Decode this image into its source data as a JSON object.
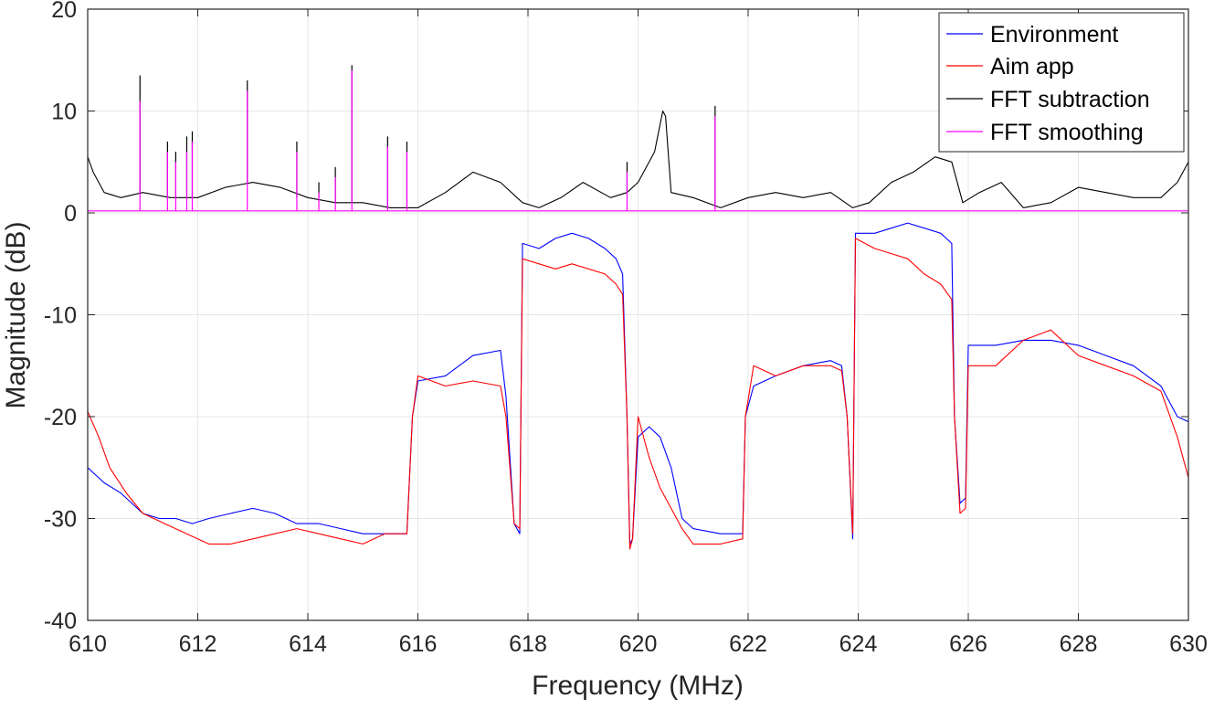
{
  "chart_data": {
    "type": "line",
    "title": "",
    "xlabel": "Frequency (MHz)",
    "ylabel": "Magnitude (dB)",
    "xlim": [
      610,
      630
    ],
    "ylim": [
      -40,
      20
    ],
    "grid": true,
    "legend_position": "top-right",
    "xticks": [
      610,
      612,
      614,
      616,
      618,
      620,
      622,
      624,
      626,
      628,
      630
    ],
    "yticks": [
      -40,
      -30,
      -20,
      -10,
      0,
      10,
      20
    ],
    "series": [
      {
        "name": "Environment",
        "color": "#0000ff",
        "points": [
          [
            610.0,
            -25
          ],
          [
            610.3,
            -26.5
          ],
          [
            610.6,
            -27.5
          ],
          [
            611.0,
            -29.5
          ],
          [
            611.3,
            -30
          ],
          [
            611.6,
            -30
          ],
          [
            611.9,
            -30.5
          ],
          [
            612.2,
            -30
          ],
          [
            612.6,
            -29.5
          ],
          [
            613.0,
            -29
          ],
          [
            613.4,
            -29.5
          ],
          [
            613.8,
            -30.5
          ],
          [
            614.2,
            -30.5
          ],
          [
            614.6,
            -31
          ],
          [
            615.0,
            -31.5
          ],
          [
            615.4,
            -31.5
          ],
          [
            615.8,
            -31.5
          ],
          [
            615.9,
            -20
          ],
          [
            616.0,
            -16.5
          ],
          [
            616.5,
            -16
          ],
          [
            617.0,
            -14
          ],
          [
            617.5,
            -13.5
          ],
          [
            617.6,
            -18
          ],
          [
            617.75,
            -30.5
          ],
          [
            617.85,
            -31.5
          ],
          [
            617.9,
            -3
          ],
          [
            618.2,
            -3.5
          ],
          [
            618.5,
            -2.5
          ],
          [
            618.8,
            -2
          ],
          [
            619.1,
            -2.5
          ],
          [
            619.4,
            -3.5
          ],
          [
            619.6,
            -4.5
          ],
          [
            619.72,
            -6
          ],
          [
            619.8,
            -20
          ],
          [
            619.85,
            -32.5
          ],
          [
            619.9,
            -32
          ],
          [
            620.0,
            -22
          ],
          [
            620.2,
            -21
          ],
          [
            620.4,
            -22
          ],
          [
            620.6,
            -25
          ],
          [
            620.8,
            -30
          ],
          [
            621.0,
            -31
          ],
          [
            621.5,
            -31.5
          ],
          [
            621.9,
            -31.5
          ],
          [
            621.95,
            -20
          ],
          [
            622.1,
            -17
          ],
          [
            622.5,
            -16
          ],
          [
            623.0,
            -15
          ],
          [
            623.5,
            -14.5
          ],
          [
            623.7,
            -15
          ],
          [
            623.8,
            -20
          ],
          [
            623.9,
            -32
          ],
          [
            623.95,
            -2
          ],
          [
            624.3,
            -2
          ],
          [
            624.6,
            -1.5
          ],
          [
            624.9,
            -1
          ],
          [
            625.2,
            -1.5
          ],
          [
            625.5,
            -2
          ],
          [
            625.7,
            -3
          ],
          [
            625.75,
            -20
          ],
          [
            625.85,
            -28.5
          ],
          [
            625.95,
            -28
          ],
          [
            626.0,
            -13
          ],
          [
            626.5,
            -13
          ],
          [
            627.0,
            -12.5
          ],
          [
            627.5,
            -12.5
          ],
          [
            628.0,
            -13
          ],
          [
            628.5,
            -14
          ],
          [
            629.0,
            -15
          ],
          [
            629.5,
            -17
          ],
          [
            629.8,
            -20
          ],
          [
            630.0,
            -20.5
          ]
        ]
      },
      {
        "name": "Aim app",
        "color": "#ff0000",
        "points": [
          [
            610.0,
            -19.5
          ],
          [
            610.2,
            -22
          ],
          [
            610.4,
            -25
          ],
          [
            610.7,
            -27.5
          ],
          [
            611.0,
            -29.5
          ],
          [
            611.4,
            -30.5
          ],
          [
            611.8,
            -31.5
          ],
          [
            612.2,
            -32.5
          ],
          [
            612.6,
            -32.5
          ],
          [
            613.0,
            -32
          ],
          [
            613.4,
            -31.5
          ],
          [
            613.8,
            -31
          ],
          [
            614.2,
            -31.5
          ],
          [
            614.6,
            -32
          ],
          [
            615.0,
            -32.5
          ],
          [
            615.4,
            -31.5
          ],
          [
            615.8,
            -31.5
          ],
          [
            615.9,
            -20
          ],
          [
            616.0,
            -16
          ],
          [
            616.5,
            -17
          ],
          [
            617.0,
            -16.5
          ],
          [
            617.5,
            -17
          ],
          [
            617.6,
            -20
          ],
          [
            617.75,
            -30.5
          ],
          [
            617.85,
            -31
          ],
          [
            617.9,
            -4.5
          ],
          [
            618.2,
            -5
          ],
          [
            618.5,
            -5.5
          ],
          [
            618.8,
            -5
          ],
          [
            619.1,
            -5.5
          ],
          [
            619.4,
            -6
          ],
          [
            619.6,
            -7
          ],
          [
            619.72,
            -8
          ],
          [
            619.8,
            -20
          ],
          [
            619.85,
            -33
          ],
          [
            619.9,
            -32
          ],
          [
            620.0,
            -20
          ],
          [
            620.2,
            -24
          ],
          [
            620.4,
            -27
          ],
          [
            620.6,
            -29
          ],
          [
            620.8,
            -31
          ],
          [
            621.0,
            -32.5
          ],
          [
            621.5,
            -32.5
          ],
          [
            621.9,
            -32
          ],
          [
            621.95,
            -20
          ],
          [
            622.1,
            -15
          ],
          [
            622.5,
            -16
          ],
          [
            623.0,
            -15
          ],
          [
            623.5,
            -15
          ],
          [
            623.7,
            -15.5
          ],
          [
            623.8,
            -20
          ],
          [
            623.9,
            -31.5
          ],
          [
            623.95,
            -2.5
          ],
          [
            624.3,
            -3.5
          ],
          [
            624.6,
            -4
          ],
          [
            624.9,
            -4.5
          ],
          [
            625.2,
            -6
          ],
          [
            625.5,
            -7
          ],
          [
            625.7,
            -8.5
          ],
          [
            625.75,
            -20
          ],
          [
            625.85,
            -29.5
          ],
          [
            625.95,
            -29
          ],
          [
            626.0,
            -15
          ],
          [
            626.5,
            -15
          ],
          [
            627.0,
            -12.5
          ],
          [
            627.5,
            -11.5
          ],
          [
            628.0,
            -14
          ],
          [
            628.5,
            -15
          ],
          [
            629.0,
            -16
          ],
          [
            629.5,
            -17.5
          ],
          [
            629.8,
            -22
          ],
          [
            630.0,
            -26
          ]
        ]
      },
      {
        "name": "FFT subtraction",
        "color": "#000000",
        "points": [
          [
            610.0,
            5.5
          ],
          [
            610.1,
            4
          ],
          [
            610.3,
            2
          ],
          [
            610.6,
            1.5
          ],
          [
            611.0,
            2
          ],
          [
            611.5,
            1.5
          ],
          [
            612.0,
            1.5
          ],
          [
            612.5,
            2.5
          ],
          [
            613.0,
            3
          ],
          [
            613.5,
            2.5
          ],
          [
            614.0,
            1.5
          ],
          [
            614.5,
            1
          ],
          [
            615.0,
            1
          ],
          [
            615.5,
            0.5
          ],
          [
            616.0,
            0.5
          ],
          [
            616.5,
            2
          ],
          [
            617.0,
            4
          ],
          [
            617.5,
            3
          ],
          [
            617.9,
            1
          ],
          [
            618.2,
            0.5
          ],
          [
            618.6,
            1.5
          ],
          [
            619.0,
            3
          ],
          [
            619.5,
            1.5
          ],
          [
            619.8,
            2
          ],
          [
            620.0,
            3
          ],
          [
            620.3,
            6
          ],
          [
            620.45,
            10
          ],
          [
            620.5,
            9.5
          ],
          [
            620.6,
            2
          ],
          [
            621.0,
            1.5
          ],
          [
            621.5,
            0.5
          ],
          [
            622.0,
            1.5
          ],
          [
            622.5,
            2
          ],
          [
            623.0,
            1.5
          ],
          [
            623.5,
            2
          ],
          [
            623.9,
            0.5
          ],
          [
            624.2,
            1
          ],
          [
            624.6,
            3
          ],
          [
            625.0,
            4
          ],
          [
            625.4,
            5.5
          ],
          [
            625.7,
            5
          ],
          [
            625.9,
            1
          ],
          [
            626.2,
            2
          ],
          [
            626.6,
            3
          ],
          [
            627.0,
            0.5
          ],
          [
            627.5,
            1
          ],
          [
            628.0,
            2.5
          ],
          [
            628.5,
            2
          ],
          [
            629.0,
            1.5
          ],
          [
            629.5,
            1.5
          ],
          [
            629.8,
            3
          ],
          [
            630.0,
            5
          ]
        ],
        "spikes": [
          [
            610.95,
            13.5
          ],
          [
            611.45,
            7
          ],
          [
            611.6,
            6
          ],
          [
            611.8,
            7.5
          ],
          [
            611.9,
            8
          ],
          [
            612.9,
            13
          ],
          [
            613.8,
            7
          ],
          [
            614.2,
            3
          ],
          [
            614.5,
            4.5
          ],
          [
            614.8,
            14.5
          ],
          [
            615.45,
            7.5
          ],
          [
            615.8,
            7
          ],
          [
            619.8,
            5
          ],
          [
            621.4,
            10.5
          ]
        ]
      },
      {
        "name": "FFT smoothing",
        "color": "#ff00ff",
        "points": [
          [
            610.0,
            0.2
          ],
          [
            630.0,
            0.2
          ]
        ],
        "spikes": [
          [
            610.95,
            11
          ],
          [
            611.45,
            6
          ],
          [
            611.6,
            5
          ],
          [
            611.8,
            6
          ],
          [
            611.9,
            7
          ],
          [
            612.9,
            12
          ],
          [
            613.8,
            6
          ],
          [
            614.2,
            2
          ],
          [
            614.5,
            3.5
          ],
          [
            614.8,
            14
          ],
          [
            615.45,
            6.5
          ],
          [
            615.8,
            6
          ],
          [
            619.8,
            4
          ],
          [
            621.4,
            9.5
          ]
        ]
      }
    ]
  }
}
